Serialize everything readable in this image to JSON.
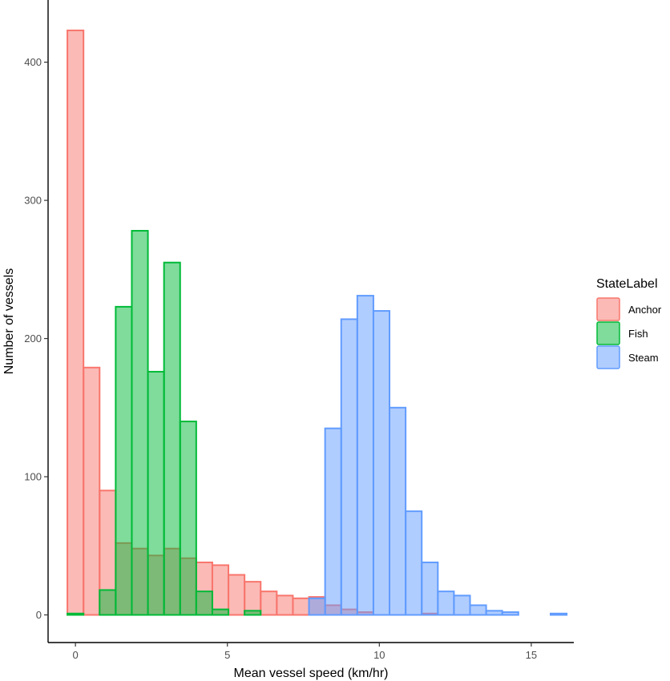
{
  "chart_data": {
    "type": "bar",
    "subtype": "overlapping-histogram",
    "title": "",
    "xlabel": "Mean vessel speed (km/hr)",
    "ylabel": "Number of vessels",
    "xlim": [
      -0.9,
      16.4
    ],
    "ylim": [
      -20,
      445
    ],
    "xticks": [
      0,
      5,
      10,
      15
    ],
    "yticks": [
      0,
      100,
      200,
      300,
      400
    ],
    "grid": false,
    "legend": {
      "title": "StateLabel",
      "placement": "right"
    },
    "bin_width": 0.53,
    "bin_centers": [
      0,
      0.53,
      1.06,
      1.59,
      2.12,
      2.65,
      3.18,
      3.71,
      4.24,
      4.77,
      5.3,
      5.83,
      6.36,
      6.89,
      7.42,
      7.95,
      8.48,
      9.01,
      9.54,
      10.07,
      10.6,
      11.13,
      11.66,
      12.19,
      12.72,
      13.25,
      13.78,
      14.31,
      14.84,
      15.37,
      15.9
    ],
    "series": [
      {
        "name": "Anchor",
        "fill": "#F8766D",
        "values": [
          423,
          179,
          90,
          52,
          48,
          43,
          48,
          41,
          38,
          36,
          29,
          24,
          17,
          14,
          12,
          13,
          7,
          4,
          2,
          0,
          0,
          0,
          1,
          0,
          0,
          0,
          0,
          0,
          0,
          0,
          0
        ]
      },
      {
        "name": "Fish",
        "fill": "#00BA38",
        "values": [
          1,
          0,
          18,
          223,
          278,
          176,
          255,
          140,
          17,
          4,
          0,
          3,
          0,
          0,
          0,
          0,
          0,
          0,
          0,
          0,
          0,
          0,
          0,
          0,
          0,
          0,
          0,
          0,
          0,
          0,
          0
        ]
      },
      {
        "name": "Steam",
        "fill": "#619CFF",
        "values": [
          0,
          0,
          0,
          0,
          0,
          0,
          0,
          0,
          0,
          0,
          0,
          0,
          0,
          0,
          0,
          12,
          135,
          214,
          231,
          220,
          150,
          75,
          38,
          17,
          14,
          7,
          3,
          2,
          0,
          0,
          1
        ]
      }
    ]
  }
}
